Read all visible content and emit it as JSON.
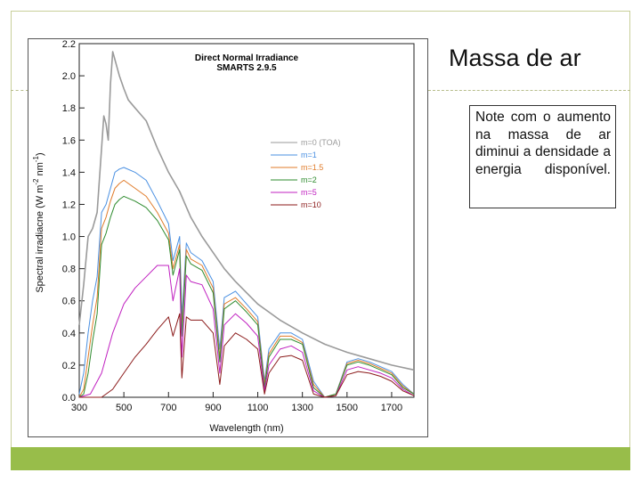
{
  "slide": {
    "title": "Massa de ar",
    "note": "Note com o aumento na massa de ar diminui a densidade a energia disponível.",
    "colors": {
      "accent_bar": "#98bd4a",
      "frame": "#c8cf9a"
    }
  },
  "chart_data": {
    "type": "line",
    "title": "Direct Normal Irradiance",
    "subtitle": "SMARTS 2.9.5",
    "xlabel": "Wavelength (nm)",
    "ylabel": "Spectral irradiacne (W m",
    "ylabel_sup1": "-2",
    "ylabel_mid": " nm",
    "ylabel_sup2": "-1",
    "ylabel_end": ")",
    "xlim": [
      300,
      1800
    ],
    "ylim": [
      0.0,
      2.2
    ],
    "xticks": [
      300,
      500,
      700,
      900,
      1100,
      1300,
      1500,
      1700
    ],
    "xtick_labels": [
      "300",
      "500",
      "700",
      "900",
      "1100",
      "1300",
      "1500",
      "1700"
    ],
    "yticks": [
      0.0,
      0.2,
      0.4,
      0.6,
      0.8,
      1.0,
      1.2,
      1.4,
      1.6,
      1.8,
      2.0,
      2.2
    ],
    "ytick_labels": [
      "0.0",
      "0.2",
      "0.4",
      "0.6",
      "0.8",
      "1.0",
      "1.2",
      "1.4",
      "1.6",
      "1.8",
      "2.0",
      "2.2"
    ],
    "grid": false,
    "legend_position": "upper-right",
    "series": [
      {
        "name": "m=0 (TOA)",
        "color": "#9a9a9a",
        "x": [
          300,
          320,
          340,
          360,
          380,
          400,
          410,
          420,
          430,
          440,
          450,
          460,
          470,
          480,
          500,
          520,
          550,
          600,
          650,
          700,
          750,
          800,
          850,
          900,
          950,
          1000,
          1050,
          1100,
          1150,
          1200,
          1300,
          1400,
          1500,
          1600,
          1700,
          1800
        ],
        "y": [
          0.45,
          0.7,
          1.0,
          1.05,
          1.15,
          1.55,
          1.75,
          1.7,
          1.6,
          1.95,
          2.15,
          2.1,
          2.05,
          2.0,
          1.92,
          1.85,
          1.8,
          1.72,
          1.55,
          1.4,
          1.28,
          1.12,
          1.0,
          0.9,
          0.8,
          0.72,
          0.65,
          0.58,
          0.53,
          0.48,
          0.4,
          0.33,
          0.28,
          0.24,
          0.2,
          0.17
        ]
      },
      {
        "name": "m=1",
        "color": "#4a90e2",
        "x": [
          300,
          320,
          340,
          360,
          380,
          400,
          420,
          440,
          460,
          480,
          500,
          550,
          600,
          650,
          700,
          720,
          750,
          760,
          780,
          800,
          850,
          900,
          930,
          950,
          1000,
          1050,
          1100,
          1130,
          1150,
          1200,
          1250,
          1300,
          1350,
          1400,
          1450,
          1500,
          1550,
          1600,
          1650,
          1700,
          1750,
          1800
        ],
        "y": [
          0.02,
          0.15,
          0.4,
          0.6,
          0.75,
          1.15,
          1.2,
          1.3,
          1.4,
          1.42,
          1.43,
          1.4,
          1.35,
          1.22,
          1.08,
          0.85,
          1.0,
          0.5,
          0.96,
          0.9,
          0.85,
          0.72,
          0.3,
          0.62,
          0.66,
          0.58,
          0.5,
          0.1,
          0.3,
          0.4,
          0.4,
          0.36,
          0.1,
          0.0,
          0.02,
          0.22,
          0.24,
          0.22,
          0.19,
          0.16,
          0.08,
          0.02
        ]
      },
      {
        "name": "m=1.5",
        "color": "#e07b2a",
        "x": [
          300,
          320,
          340,
          360,
          380,
          400,
          420,
          440,
          460,
          480,
          500,
          550,
          600,
          650,
          700,
          720,
          750,
          760,
          780,
          800,
          850,
          900,
          930,
          950,
          1000,
          1050,
          1100,
          1130,
          1150,
          1200,
          1250,
          1300,
          1350,
          1400,
          1450,
          1500,
          1550,
          1600,
          1650,
          1700,
          1750,
          1800
        ],
        "y": [
          0.0,
          0.05,
          0.25,
          0.45,
          0.62,
          1.05,
          1.12,
          1.22,
          1.3,
          1.33,
          1.35,
          1.3,
          1.25,
          1.15,
          1.02,
          0.8,
          0.95,
          0.42,
          0.92,
          0.86,
          0.82,
          0.68,
          0.25,
          0.58,
          0.62,
          0.55,
          0.47,
          0.08,
          0.27,
          0.38,
          0.38,
          0.34,
          0.08,
          0.0,
          0.02,
          0.21,
          0.23,
          0.21,
          0.18,
          0.15,
          0.07,
          0.02
        ]
      },
      {
        "name": "m=2",
        "color": "#2e8b2e",
        "x": [
          300,
          320,
          340,
          360,
          380,
          400,
          420,
          440,
          460,
          480,
          500,
          550,
          600,
          650,
          700,
          720,
          750,
          760,
          780,
          800,
          850,
          900,
          930,
          950,
          1000,
          1050,
          1100,
          1130,
          1150,
          1200,
          1250,
          1300,
          1350,
          1400,
          1450,
          1500,
          1550,
          1600,
          1650,
          1700,
          1750,
          1800
        ],
        "y": [
          0.0,
          0.02,
          0.15,
          0.35,
          0.52,
          0.95,
          1.02,
          1.12,
          1.2,
          1.23,
          1.25,
          1.22,
          1.18,
          1.1,
          0.98,
          0.76,
          0.92,
          0.38,
          0.88,
          0.83,
          0.79,
          0.65,
          0.22,
          0.55,
          0.6,
          0.53,
          0.45,
          0.06,
          0.25,
          0.36,
          0.36,
          0.33,
          0.06,
          0.0,
          0.02,
          0.2,
          0.22,
          0.2,
          0.17,
          0.14,
          0.06,
          0.02
        ]
      },
      {
        "name": "m=5",
        "color": "#c020c0",
        "x": [
          300,
          350,
          400,
          450,
          500,
          550,
          600,
          650,
          700,
          720,
          750,
          760,
          780,
          800,
          850,
          900,
          930,
          950,
          1000,
          1050,
          1100,
          1130,
          1150,
          1200,
          1250,
          1300,
          1350,
          1400,
          1450,
          1500,
          1550,
          1600,
          1650,
          1700,
          1750,
          1800
        ],
        "y": [
          0.0,
          0.02,
          0.15,
          0.4,
          0.58,
          0.68,
          0.75,
          0.82,
          0.82,
          0.6,
          0.8,
          0.25,
          0.76,
          0.72,
          0.7,
          0.55,
          0.15,
          0.45,
          0.52,
          0.46,
          0.38,
          0.04,
          0.2,
          0.3,
          0.32,
          0.28,
          0.04,
          0.0,
          0.01,
          0.17,
          0.19,
          0.17,
          0.15,
          0.12,
          0.05,
          0.01
        ]
      },
      {
        "name": "m=10",
        "color": "#8b1a1a",
        "x": [
          300,
          400,
          450,
          500,
          550,
          600,
          650,
          700,
          720,
          750,
          760,
          780,
          800,
          850,
          900,
          930,
          950,
          1000,
          1050,
          1100,
          1130,
          1150,
          1200,
          1250,
          1300,
          1350,
          1400,
          1450,
          1500,
          1550,
          1600,
          1650,
          1700,
          1750,
          1800
        ],
        "y": [
          0.0,
          0.0,
          0.05,
          0.15,
          0.25,
          0.33,
          0.42,
          0.5,
          0.38,
          0.52,
          0.12,
          0.5,
          0.48,
          0.48,
          0.4,
          0.08,
          0.32,
          0.4,
          0.36,
          0.3,
          0.02,
          0.15,
          0.25,
          0.26,
          0.23,
          0.02,
          0.0,
          0.01,
          0.14,
          0.16,
          0.15,
          0.13,
          0.1,
          0.04,
          0.01
        ]
      }
    ]
  }
}
